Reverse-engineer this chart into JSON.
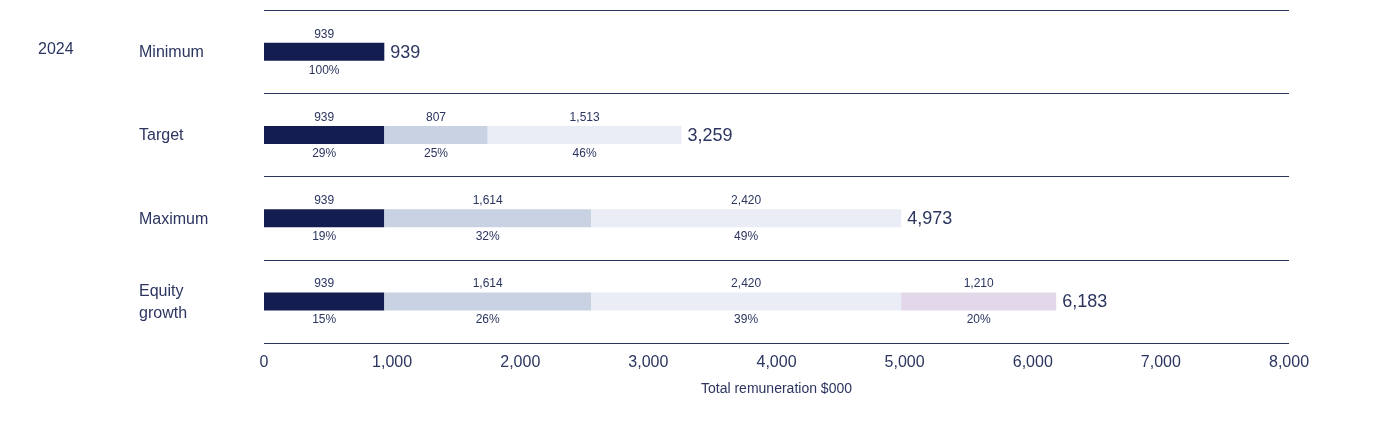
{
  "chart_data": {
    "type": "bar",
    "orientation": "horizontal",
    "stacked": true,
    "xlabel": "Total remuneration $000",
    "categories": [
      "Minimum",
      "Target",
      "Maximum",
      "Equity growth"
    ],
    "series": [
      {
        "color": "#141d4f",
        "values": [
          939,
          939,
          939,
          939
        ],
        "value_labels": [
          "939",
          "939",
          "939",
          "939"
        ]
      },
      {
        "color": "#c8d2e3",
        "values": [
          null,
          807,
          1614,
          1614
        ],
        "value_labels": [
          null,
          "807",
          "1,614",
          "1,614"
        ]
      },
      {
        "color": "#eaedf5",
        "values": [
          null,
          1513,
          2420,
          2420
        ],
        "value_labels": [
          null,
          "1,513",
          "2,420",
          "2,420"
        ]
      },
      {
        "color": "#e3d8ea",
        "values": [
          null,
          null,
          null,
          1210
        ],
        "value_labels": [
          null,
          null,
          null,
          "1,210"
        ]
      }
    ],
    "totals": [
      "939",
      "3,259",
      "4,973",
      "6,183"
    ],
    "xlim": [
      0,
      8000
    ],
    "xticks": [
      0,
      {
        "value": 1000,
        "label": "1,000"
      },
      {
        "value": 2000,
        "label": "2,000"
      },
      {
        "value": 3000,
        "label": "3,000"
      },
      {
        "value": 4000,
        "label": "4,000"
      },
      {
        "value": 5000,
        "label": "5,000"
      },
      {
        "value": 6000,
        "label": "6,000"
      },
      {
        "value": 7000,
        "label": "7,000"
      },
      {
        "value": 8000,
        "label": "8,000"
      }
    ],
    "grid": "y",
    "annotations": [
      "2024",
      "100%",
      "29%",
      "25%",
      "46%",
      "19%",
      "32%",
      "49%",
      "15%",
      "26%",
      "39%",
      "20%"
    ]
  }
}
